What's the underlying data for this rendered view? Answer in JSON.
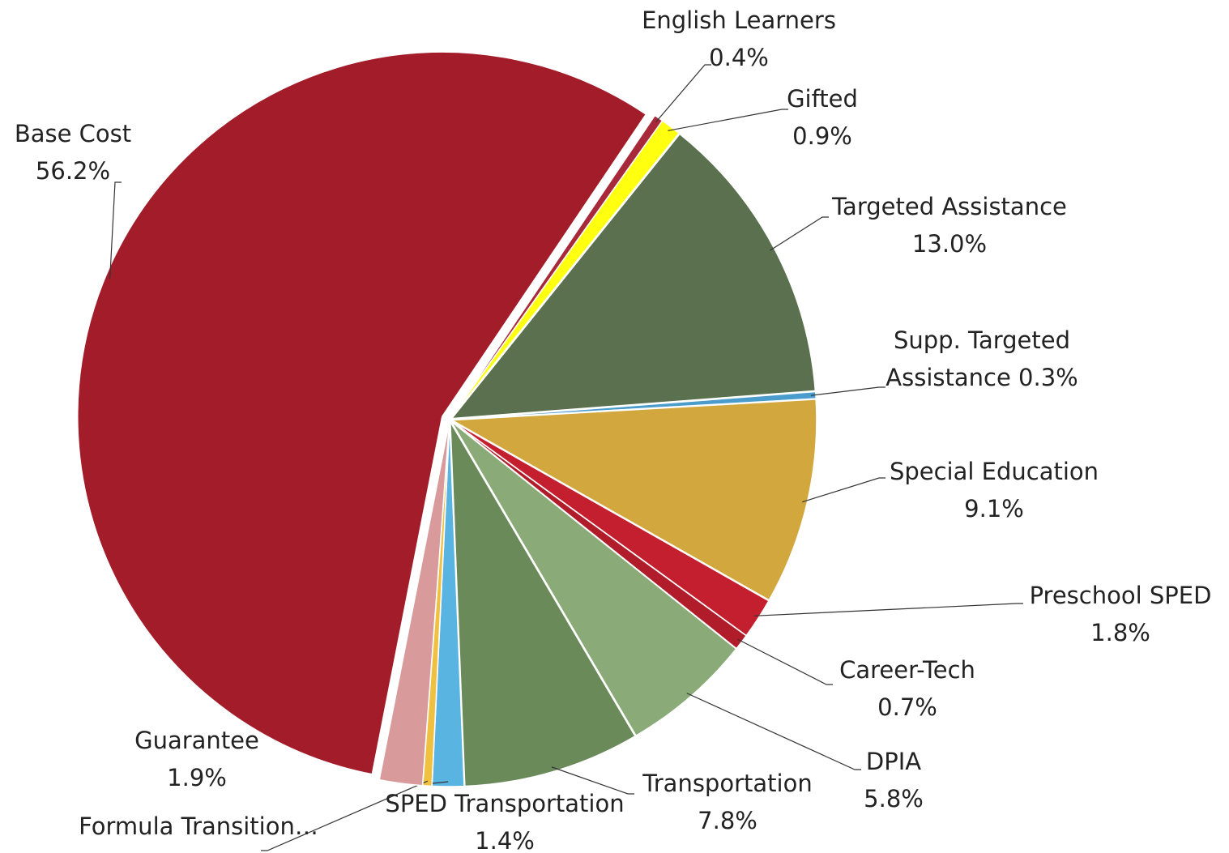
{
  "chart_data": {
    "type": "pie",
    "categories": [
      "English Learners",
      "Gifted",
      "Targeted Assistance",
      "Supp. Targeted Assistance",
      "Special Education",
      "Preschool SPED",
      "Career-Tech",
      "DPIA",
      "Transportation",
      "SPED Transportation",
      "Formula Transition…",
      "Guarantee",
      "Base Cost"
    ],
    "values": [
      0.4,
      0.9,
      13.0,
      0.3,
      9.1,
      1.8,
      0.7,
      5.8,
      7.8,
      1.4,
      0.4,
      1.9,
      56.2
    ],
    "value_labels": [
      "0.4%",
      "0.9%",
      "13.0%",
      "0.3%",
      "9.1%",
      "1.8%",
      "0.7%",
      "5.8%",
      "7.8%",
      "1.4%",
      null,
      "1.9%",
      "56.2%"
    ],
    "colors": [
      "#a82a3a",
      "#ffff10",
      "#5a704e",
      "#4a9ccc",
      "#d2a83e",
      "#c41f2e",
      "#b01c2a",
      "#8aaa78",
      "#6a8a5a",
      "#5ab4e2",
      "#f0c040",
      "#d89a9a",
      "#a31c2a"
    ]
  }
}
